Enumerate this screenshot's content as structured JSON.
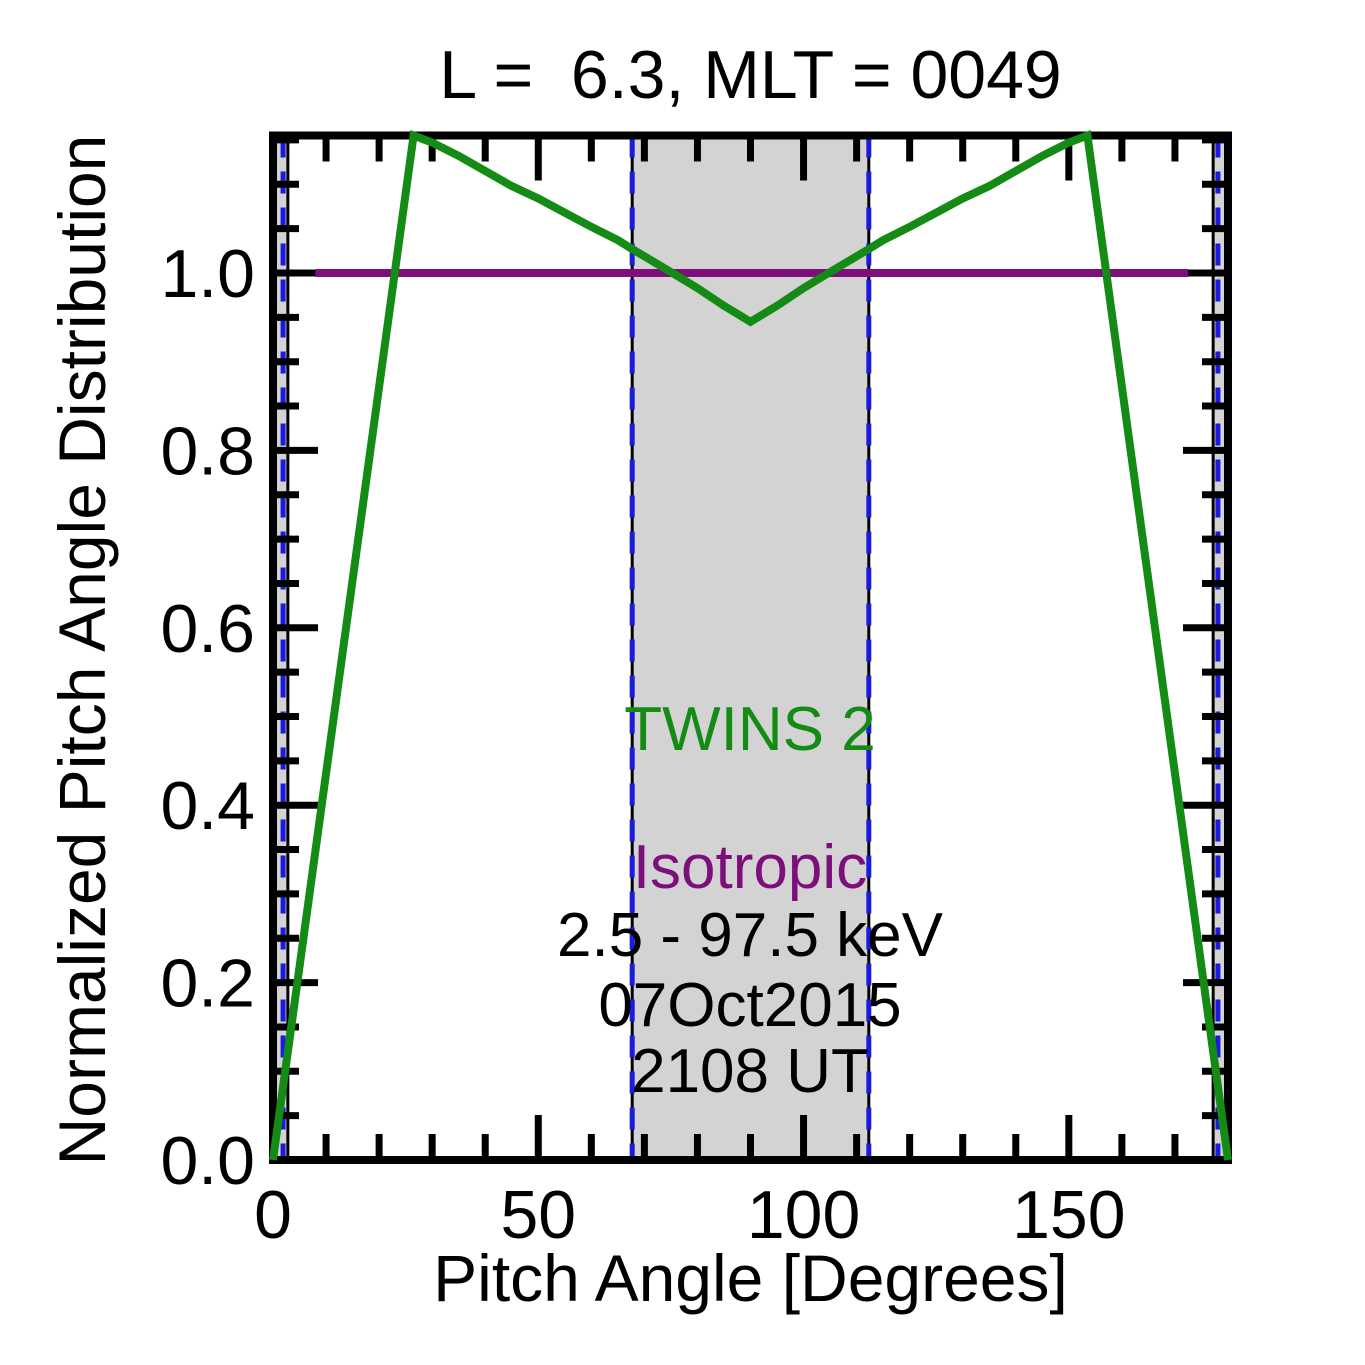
{
  "header": {
    "title": "L =  6.3, MLT = 0049"
  },
  "annotations": {
    "twins2": "TWINS 2",
    "isotropic": "Isotropic",
    "energy": "2.5 - 97.5 keV",
    "date": "07Oct2015",
    "time": "2108 UT"
  },
  "colors": {
    "series_green": "#148b14",
    "series_purple": "#7d0f7d",
    "dashed_blue": "#1a1ae0",
    "shade_gray": "#d3d3d3",
    "axis_black": "#000000"
  },
  "chart_data": {
    "type": "line",
    "title": "L =  6.3, MLT = 0049",
    "xlabel": "Pitch Angle [Degrees]",
    "ylabel": "Normalized Pitch Angle Distribution",
    "xlim": [
      0,
      180
    ],
    "ylim": [
      0,
      1.155
    ],
    "x_major_ticks": [
      0,
      50,
      100,
      150
    ],
    "x_tick_labels": [
      "0",
      "50",
      "100",
      "150"
    ],
    "x_minor_step": 10,
    "y_major_ticks": [
      0.0,
      0.2,
      0.4,
      0.6,
      0.8,
      1.0
    ],
    "y_tick_labels": [
      "0.0",
      "0.2",
      "0.4",
      "0.6",
      "0.8",
      "1.0"
    ],
    "y_minor_step": 0.05,
    "grid": false,
    "legend_position": "in-plot text labels",
    "series": [
      {
        "name": "Isotropic",
        "color_key": "series_purple",
        "points": [
          [
            8,
            1.0
          ],
          [
            172.5,
            1.0
          ]
        ]
      },
      {
        "name": "TWINS 2",
        "color_key": "series_green",
        "points": [
          [
            0,
            0
          ],
          [
            26.5,
            1.155
          ],
          [
            30,
            1.147
          ],
          [
            35,
            1.132
          ],
          [
            40,
            1.115
          ],
          [
            45,
            1.098
          ],
          [
            50,
            1.084
          ],
          [
            55,
            1.068
          ],
          [
            60,
            1.052
          ],
          [
            65,
            1.037
          ],
          [
            67.7,
            1.027
          ],
          [
            75,
            1.001
          ],
          [
            80,
            0.983
          ],
          [
            85,
            0.963
          ],
          [
            90,
            0.945
          ],
          [
            95,
            0.963
          ],
          [
            100,
            0.983
          ],
          [
            105,
            1.001
          ],
          [
            112.3,
            1.027
          ],
          [
            115,
            1.037
          ],
          [
            120,
            1.052
          ],
          [
            125,
            1.068
          ],
          [
            130,
            1.084
          ],
          [
            135,
            1.098
          ],
          [
            140,
            1.115
          ],
          [
            145,
            1.132
          ],
          [
            150,
            1.147
          ],
          [
            153.5,
            1.155
          ],
          [
            180,
            0
          ]
        ]
      }
    ],
    "shaded_regions": [
      [
        0,
        2.8
      ],
      [
        67.7,
        112.3
      ],
      [
        177.2,
        180
      ]
    ],
    "region_edge_lines": [
      2.8,
      67.7,
      112.3,
      177.2
    ],
    "dashed_vlines": [
      1.9,
      67.7,
      112.3,
      178.1
    ]
  }
}
